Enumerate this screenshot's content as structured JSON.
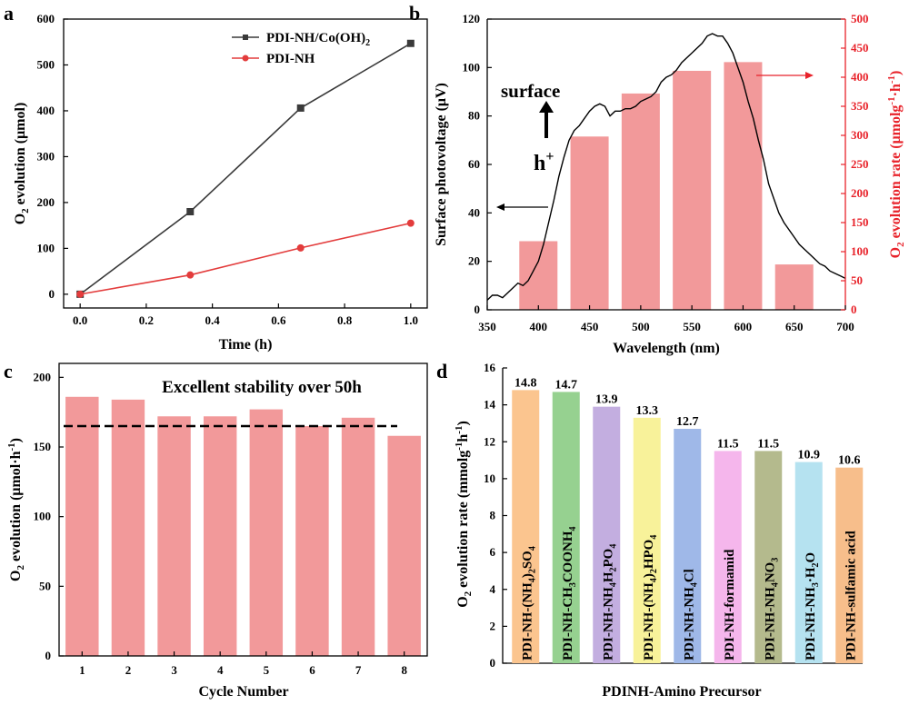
{
  "panel_labels": [
    "a",
    "b",
    "c",
    "d"
  ],
  "colors": {
    "black_series": "#3a3a3a",
    "red_series": "#e33c3c",
    "bar_fill": "#f2999a",
    "right_axis": "#e8222a",
    "d_bars": [
      "#fbc58f",
      "#96d190",
      "#c3aee0",
      "#f8f29a",
      "#9fb8e8",
      "#f5b6ec",
      "#b4ba8d",
      "#b5e2f0",
      "#f7be8b"
    ]
  },
  "chart_data": [
    {
      "panel": "a",
      "type": "line",
      "xlabel": "Time (h)",
      "ylabel": "O2 evolution (μmol)",
      "xlim": [
        -0.05,
        1.05
      ],
      "ylim": [
        -30,
        600
      ],
      "xticks": [
        "0.0",
        "0.2",
        "0.4",
        "0.6",
        "0.8",
        "1.0"
      ],
      "yticks": [
        "0",
        "100",
        "200",
        "300",
        "400",
        "500",
        "600"
      ],
      "legend_position": "top-right",
      "series": [
        {
          "name": "PDI-NH/Co(OH)2",
          "legend_main": "PDI-NH/Co(OH)",
          "legend_sub": "2",
          "marker": "square",
          "x": [
            0,
            0.333,
            0.667,
            1.0
          ],
          "y": [
            0,
            180,
            406,
            547
          ]
        },
        {
          "name": "PDI-NH",
          "legend_main": "PDI-NH",
          "legend_sub": "",
          "marker": "circle",
          "x": [
            0,
            0.333,
            0.667,
            1.0
          ],
          "y": [
            0,
            42,
            101,
            155
          ]
        }
      ]
    },
    {
      "panel": "b",
      "type": "bar+line",
      "xlabel": "Wavelength (nm)",
      "ylabel_left": "Surface photovoltage (μV)",
      "ylabel_right_main": "O",
      "ylabel_right_rest": " evolution rate (μmolg",
      "ylabel_right_tail": "·h",
      "xlim": [
        350,
        700
      ],
      "ylim_left": [
        0,
        120
      ],
      "ylim_right": [
        0,
        500
      ],
      "xticks": [
        "350",
        "400",
        "450",
        "500",
        "550",
        "600",
        "650",
        "700"
      ],
      "yticks_left": [
        "0",
        "20",
        "40",
        "60",
        "80",
        "100",
        "120"
      ],
      "yticks_right": [
        "0",
        "50",
        "100",
        "150",
        "200",
        "250",
        "300",
        "350",
        "400",
        "450",
        "500"
      ],
      "bars": {
        "centers": [
          400,
          450,
          500,
          550,
          600,
          650
        ],
        "values": [
          118,
          298,
          372,
          411,
          426,
          78
        ]
      },
      "photovoltage_curve": {
        "x": [
          350,
          355,
          360,
          365,
          370,
          375,
          380,
          385,
          390,
          395,
          400,
          405,
          410,
          415,
          420,
          425,
          430,
          435,
          440,
          445,
          450,
          455,
          460,
          465,
          470,
          475,
          480,
          485,
          490,
          495,
          500,
          505,
          510,
          515,
          520,
          525,
          530,
          535,
          540,
          545,
          550,
          555,
          560,
          565,
          570,
          575,
          580,
          585,
          590,
          595,
          600,
          605,
          610,
          615,
          620,
          625,
          630,
          635,
          640,
          645,
          650,
          655,
          660,
          665,
          670,
          675,
          680,
          685,
          690,
          695,
          700
        ],
        "y": [
          4,
          6,
          6,
          5,
          7,
          9,
          11,
          10,
          12,
          16,
          20,
          27,
          36,
          45,
          55,
          63,
          70,
          74,
          76,
          79,
          82,
          84,
          85,
          84,
          80,
          82,
          82,
          83,
          83,
          84,
          86,
          87,
          88,
          90,
          94,
          96,
          97,
          99,
          102,
          104,
          106,
          108,
          110,
          113,
          114,
          113,
          113,
          110,
          106,
          100,
          94,
          86,
          79,
          70,
          62,
          52,
          46,
          40,
          36,
          33,
          30,
          27,
          25,
          23,
          21,
          19,
          18,
          16,
          15,
          14,
          13
        ]
      },
      "annotation_surface": "surface",
      "annotation_h": "h",
      "annotation_plus": "+"
    },
    {
      "panel": "c",
      "type": "bar",
      "xlabel": "Cycle Number",
      "ylabel": "O2 evolution (μmol·h-1)",
      "ylim": [
        0,
        210
      ],
      "yticks": [
        "0",
        "50",
        "100",
        "150",
        "200"
      ],
      "categories": [
        "1",
        "2",
        "3",
        "4",
        "5",
        "6",
        "7",
        "8"
      ],
      "values": [
        186,
        184,
        172,
        172,
        177,
        165,
        171,
        158
      ],
      "reference_line": 165,
      "annotation": "Excellent stability over 50h"
    },
    {
      "panel": "d",
      "type": "bar",
      "xlabel": "PDINH-Amino Precursor",
      "ylabel": "O2 evolution rate (mmolg-1h-1)",
      "ylim": [
        0,
        16
      ],
      "yticks": [
        "0",
        "2",
        "4",
        "6",
        "8",
        "10",
        "12",
        "14",
        "16"
      ],
      "values": [
        14.8,
        14.7,
        13.9,
        13.3,
        12.7,
        11.5,
        11.5,
        10.9,
        10.6
      ],
      "value_labels": [
        "14.8",
        "14.7",
        "13.9",
        "13.3",
        "12.7",
        "11.5",
        "11.5",
        "10.9",
        "10.6"
      ],
      "bar_labels": [
        [
          {
            "t": "PDI-NH-(NH"
          },
          {
            "t": "4",
            "s": 1
          },
          {
            "t": ")"
          },
          {
            "t": "2",
            "s": 1
          },
          {
            "t": "SO"
          },
          {
            "t": "4",
            "s": 1
          }
        ],
        [
          {
            "t": "PDI-NH-CH"
          },
          {
            "t": "3",
            "s": 1
          },
          {
            "t": "COONH"
          },
          {
            "t": "4",
            "s": 1
          }
        ],
        [
          {
            "t": "PDI-NH-NH"
          },
          {
            "t": "4",
            "s": 1
          },
          {
            "t": "H"
          },
          {
            "t": "2",
            "s": 1
          },
          {
            "t": "PO"
          },
          {
            "t": "4",
            "s": 1
          }
        ],
        [
          {
            "t": "PDI-NH-(NH"
          },
          {
            "t": "4",
            "s": 1
          },
          {
            "t": ")"
          },
          {
            "t": "2",
            "s": 1
          },
          {
            "t": "HPO"
          },
          {
            "t": "4",
            "s": 1
          }
        ],
        [
          {
            "t": "PDI-NH-NH"
          },
          {
            "t": "4",
            "s": 1
          },
          {
            "t": "Cl"
          }
        ],
        [
          {
            "t": "PDI-NH-formamid"
          }
        ],
        [
          {
            "t": "PDI-NH-NH"
          },
          {
            "t": "4",
            "s": 1
          },
          {
            "t": "NO"
          },
          {
            "t": "3",
            "s": 1
          }
        ],
        [
          {
            "t": "PDI-NH-NH"
          },
          {
            "t": "3",
            "s": 1
          },
          {
            "t": "·H"
          },
          {
            "t": "2",
            "s": 1
          },
          {
            "t": "O"
          }
        ],
        [
          {
            "t": "PDI-NH-sulfamic acid"
          }
        ]
      ]
    }
  ]
}
